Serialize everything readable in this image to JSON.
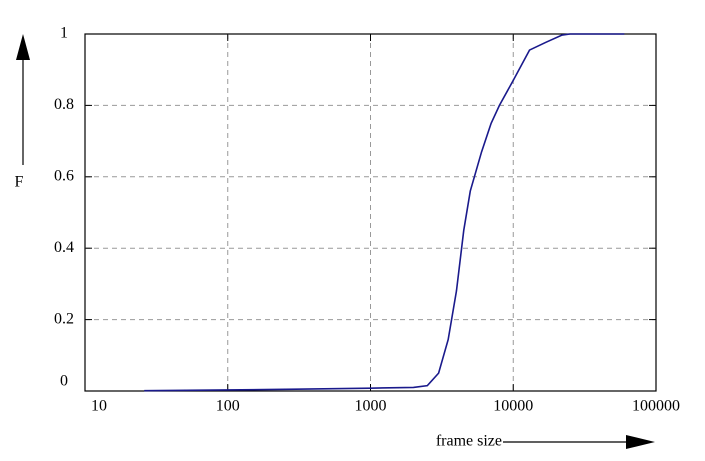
{
  "chart_data": {
    "type": "line",
    "xlabel": "frame size",
    "ylabel": "F",
    "xscale": "log",
    "xlim": [
      10,
      100000
    ],
    "xticks": [
      10,
      100,
      1000,
      10000,
      100000
    ],
    "ylim": [
      0,
      1
    ],
    "yticks": [
      0,
      0.2,
      0.4,
      0.6,
      0.8,
      1
    ],
    "grid": true,
    "series": [
      {
        "color": "#1a1a8c",
        "x": [
          26,
          100,
          300,
          1000,
          2000,
          2500,
          3000,
          3500,
          4000,
          4500,
          5000,
          6000,
          7000,
          8000,
          10000,
          13000,
          17000,
          22000,
          25000,
          60000
        ],
        "values": [
          0.001,
          0.003,
          0.005,
          0.008,
          0.01,
          0.015,
          0.05,
          0.144,
          0.28,
          0.45,
          0.56,
          0.67,
          0.75,
          0.8,
          0.87,
          0.955,
          0.977,
          0.997,
          1,
          1
        ]
      }
    ]
  }
}
